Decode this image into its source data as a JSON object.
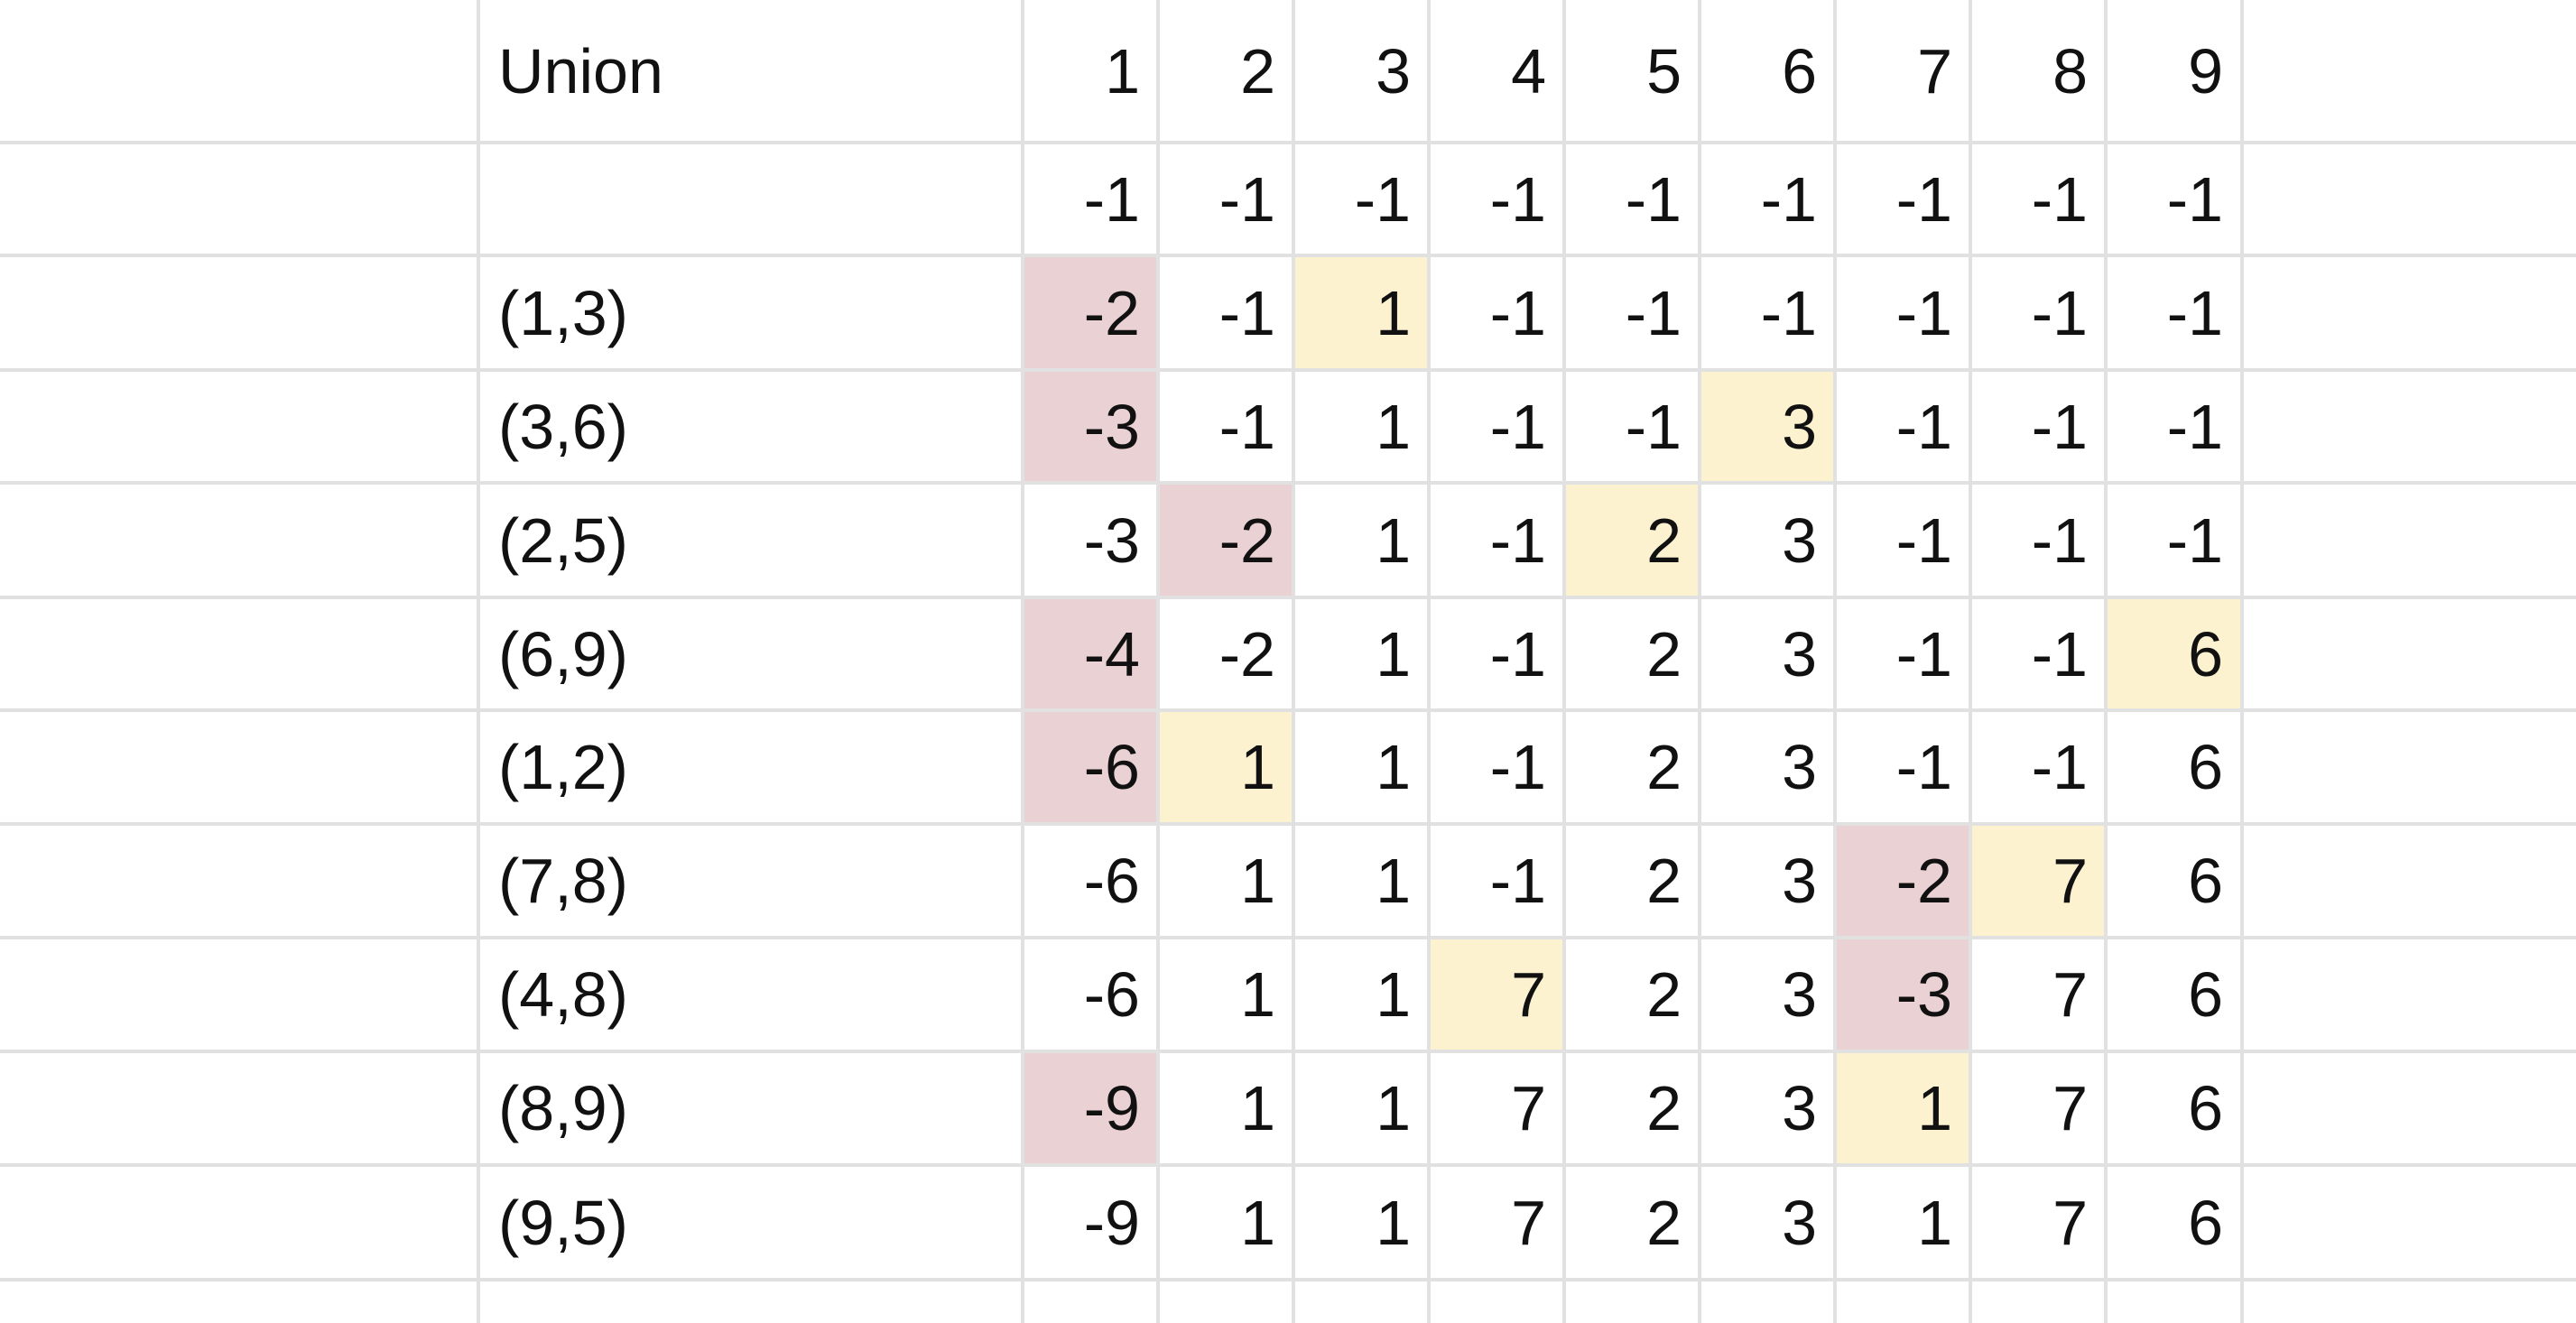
{
  "sheet": {
    "header_label": "Union",
    "column_headers": [
      "1",
      "2",
      "3",
      "4",
      "5",
      "6",
      "7",
      "8",
      "9"
    ],
    "rows": [
      {
        "label": "",
        "values": [
          "-1",
          "-1",
          "-1",
          "-1",
          "-1",
          "-1",
          "-1",
          "-1",
          "-1"
        ],
        "root_cols": [],
        "child_cols": []
      },
      {
        "label": "(1,3)",
        "values": [
          "-2",
          "-1",
          "1",
          "-1",
          "-1",
          "-1",
          "-1",
          "-1",
          "-1"
        ],
        "root_cols": [
          0
        ],
        "child_cols": [
          2
        ]
      },
      {
        "label": "(3,6)",
        "values": [
          "-3",
          "-1",
          "1",
          "-1",
          "-1",
          "3",
          "-1",
          "-1",
          "-1"
        ],
        "root_cols": [
          0
        ],
        "child_cols": [
          5
        ]
      },
      {
        "label": "(2,5)",
        "values": [
          "-3",
          "-2",
          "1",
          "-1",
          "2",
          "3",
          "-1",
          "-1",
          "-1"
        ],
        "root_cols": [
          1
        ],
        "child_cols": [
          4
        ]
      },
      {
        "label": "(6,9)",
        "values": [
          "-4",
          "-2",
          "1",
          "-1",
          "2",
          "3",
          "-1",
          "-1",
          "6"
        ],
        "root_cols": [
          0
        ],
        "child_cols": [
          8
        ]
      },
      {
        "label": "(1,2)",
        "values": [
          "-6",
          "1",
          "1",
          "-1",
          "2",
          "3",
          "-1",
          "-1",
          "6"
        ],
        "root_cols": [
          0
        ],
        "child_cols": [
          1
        ]
      },
      {
        "label": "(7,8)",
        "values": [
          "-6",
          "1",
          "1",
          "-1",
          "2",
          "3",
          "-2",
          "7",
          "6"
        ],
        "root_cols": [
          6
        ],
        "child_cols": [
          7
        ]
      },
      {
        "label": "(4,8)",
        "values": [
          "-6",
          "1",
          "1",
          "7",
          "2",
          "3",
          "-3",
          "7",
          "6"
        ],
        "root_cols": [
          6
        ],
        "child_cols": [
          3
        ]
      },
      {
        "label": "(8,9)",
        "values": [
          "-9",
          "1",
          "1",
          "7",
          "2",
          "3",
          "1",
          "7",
          "6"
        ],
        "root_cols": [
          0
        ],
        "child_cols": [
          6
        ]
      },
      {
        "label": "(9,5)",
        "values": [
          "-9",
          "1",
          "1",
          "7",
          "2",
          "3",
          "1",
          "7",
          "6"
        ],
        "root_cols": [],
        "child_cols": []
      }
    ]
  },
  "colors": {
    "root_highlight": "#ead1d3",
    "child_highlight": "#fdf2d0",
    "gridline": "#e1e1e1"
  }
}
